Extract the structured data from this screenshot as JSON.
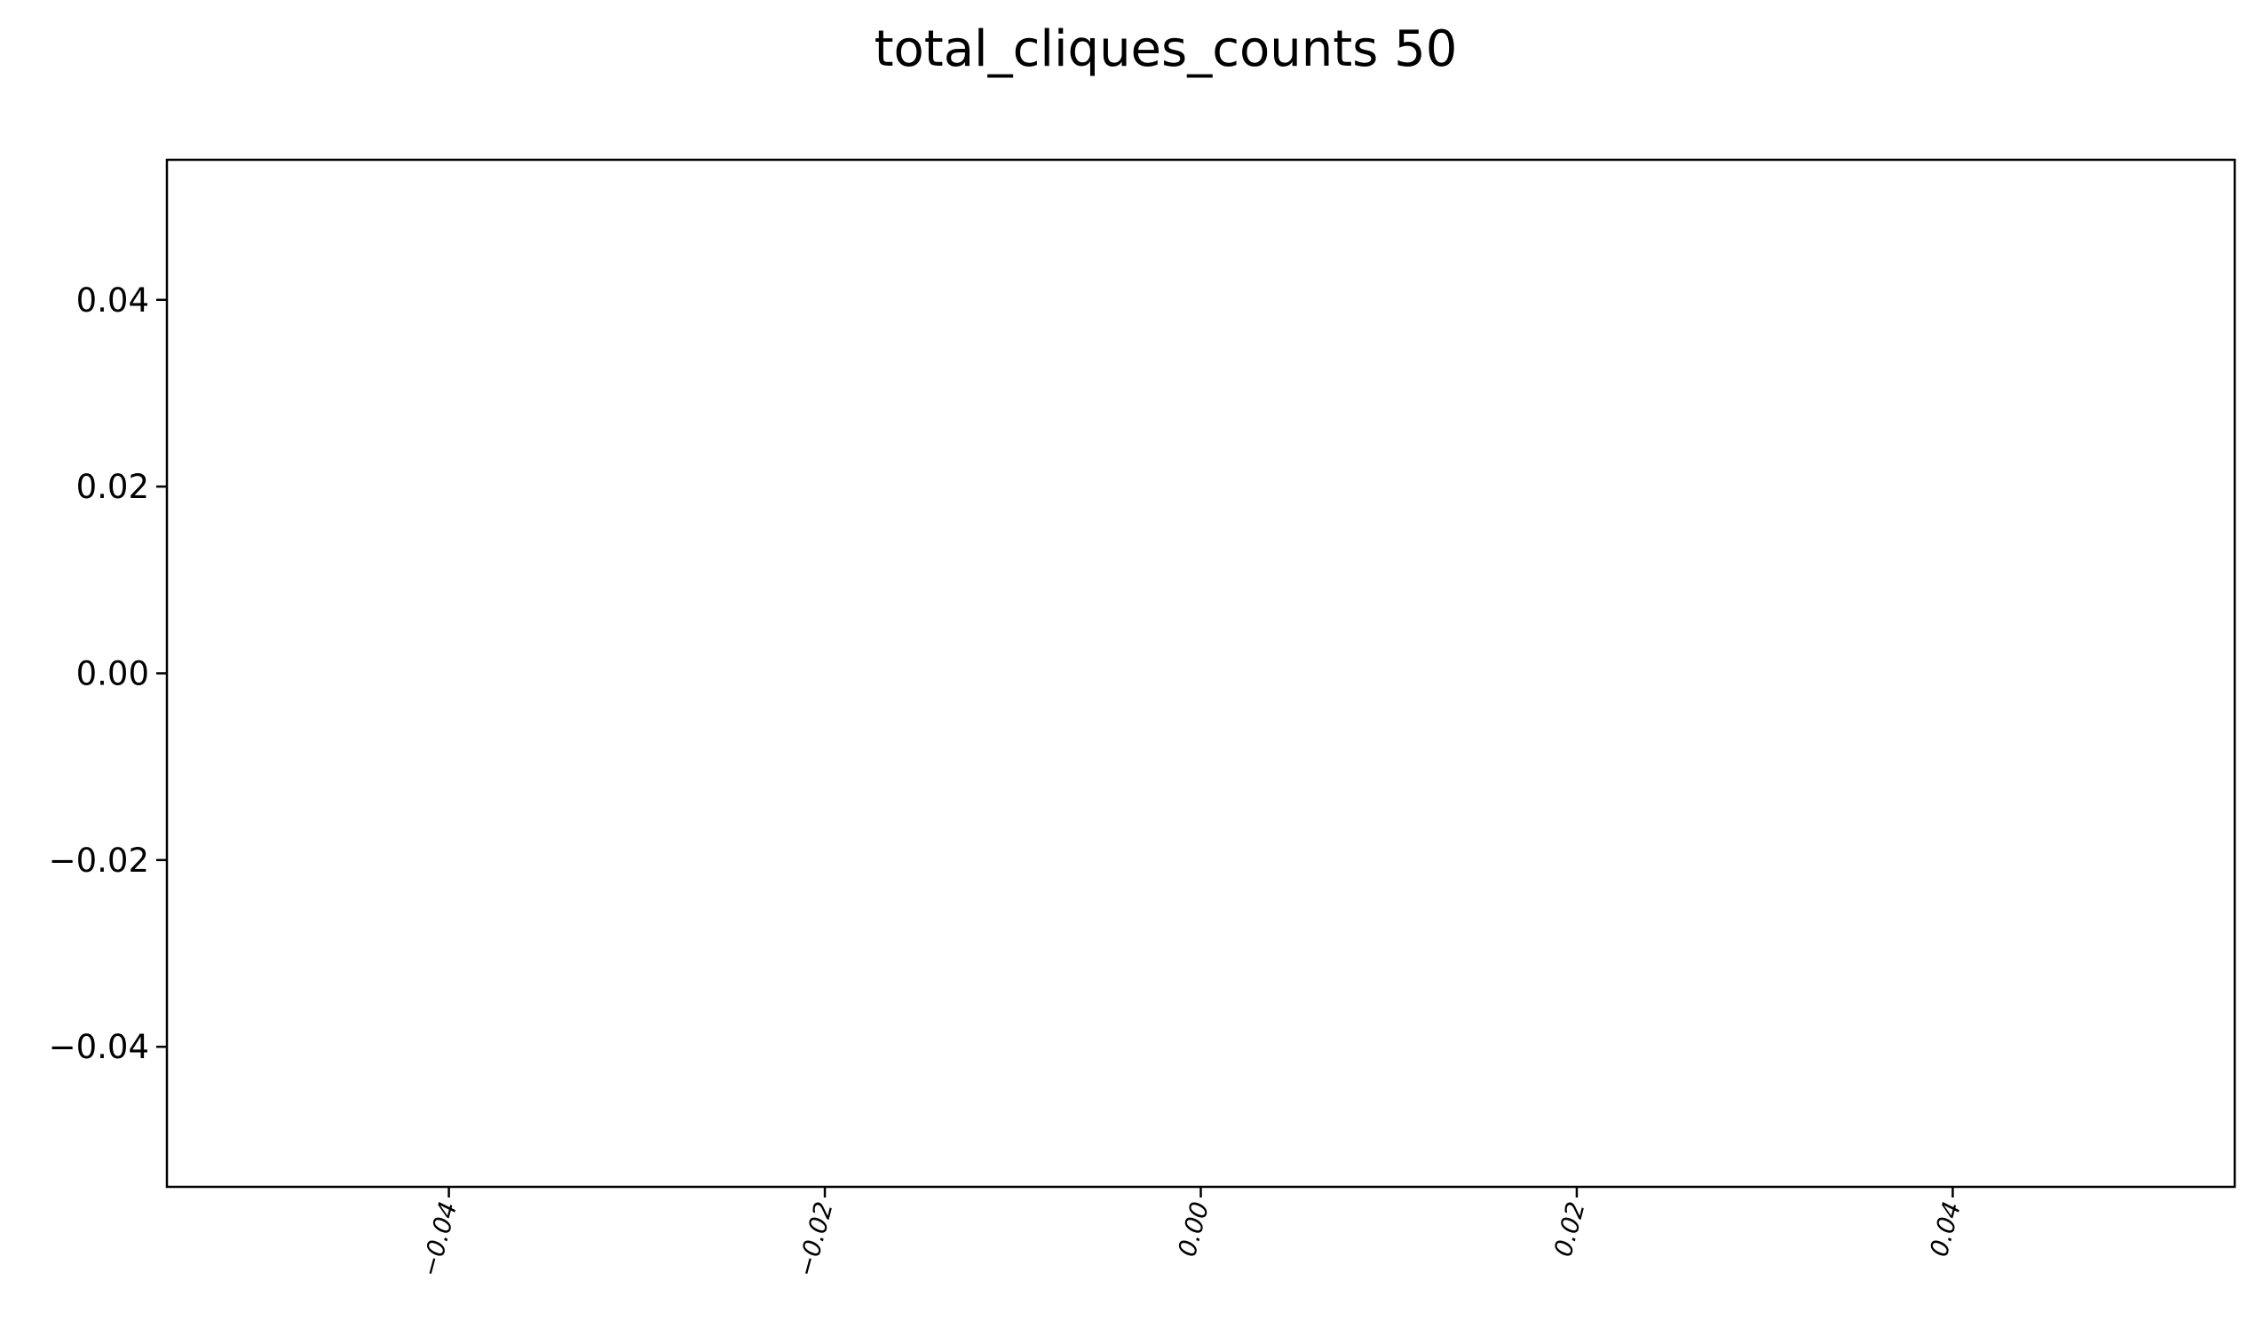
{
  "chart_data": {
    "type": "line",
    "title": "total_cliques_counts 50",
    "xlabel": "",
    "ylabel": "",
    "series": [],
    "xlim": [
      -0.055,
      0.055
    ],
    "ylim": [
      -0.055,
      0.055
    ],
    "x_ticks": [
      -0.04,
      -0.02,
      0.0,
      0.02,
      0.04
    ],
    "x_tick_labels": [
      "−0.04",
      "−0.02",
      "0.00",
      "0.02",
      "0.04"
    ],
    "y_ticks": [
      0.04,
      0.02,
      0.0,
      -0.02,
      -0.04
    ],
    "y_tick_labels": [
      "0.04",
      "0.02",
      "0.00",
      "−0.02",
      "−0.04"
    ],
    "x_tick_label_rotation": "rotated",
    "grid": false,
    "legend": "none"
  }
}
